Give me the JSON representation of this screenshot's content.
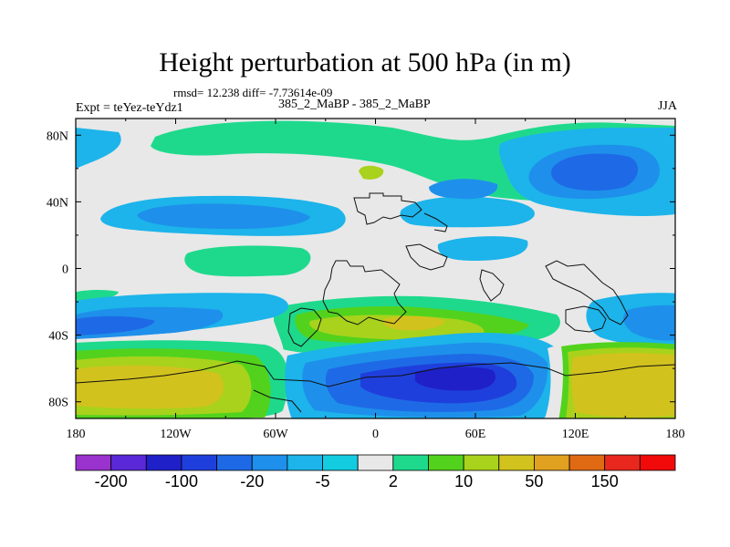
{
  "title": "Height perturbation at 500 hPa (in m)",
  "stats": "rmsd= 12.238  diff= -7.73614e-09",
  "left_label": "Expt = teYez-teYdz1",
  "center_label": "385_2_MaBP - 385_2_MaBP",
  "right_label": "JJA",
  "chart_data": {
    "type": "heatmap",
    "projection": "cylindrical-equidistant",
    "title": "Height perturbation at 500 hPa (in m)",
    "variable": "500 hPa geopotential height perturbation",
    "units": "m",
    "season": "JJA",
    "xlim": [
      -180,
      180
    ],
    "ylim": [
      -90,
      90
    ],
    "x_ticks": [
      -180,
      -120,
      -60,
      0,
      60,
      120,
      180
    ],
    "x_tick_labels": [
      "180",
      "120W",
      "60W",
      "0",
      "60E",
      "120E",
      "180"
    ],
    "y_ticks": [
      80,
      40,
      0,
      -40,
      -80
    ],
    "y_tick_labels": [
      "80N",
      "40N",
      "0",
      "40S",
      "80S"
    ],
    "colorbar": {
      "levels": [
        -200,
        -150,
        -100,
        -50,
        -20,
        -10,
        -5,
        -2,
        2,
        5,
        10,
        20,
        50,
        100,
        150,
        200
      ],
      "labeled_levels": [
        "-200",
        "-100",
        "-20",
        "-5",
        "2",
        "10",
        "50",
        "150"
      ],
      "labeled_index": [
        0,
        2,
        4,
        6,
        8,
        10,
        12,
        14
      ],
      "colors": [
        "#9a32cd",
        "#5a28d6",
        "#2020c8",
        "#1f3fdc",
        "#1e6ae6",
        "#1e90eb",
        "#1cb4ea",
        "#13cce0",
        "#e8e8e8",
        "#1ed98c",
        "#52d21c",
        "#a8d21c",
        "#d2c21e",
        "#e0a020",
        "#e06a14",
        "#e8281e",
        "#f00a0a"
      ]
    },
    "fields": [
      {
        "region": "NH high latitudes",
        "sign": "negative",
        "approx_level": -20
      },
      {
        "region": "NH mid-latitudes 40N",
        "sign": "negative",
        "approx_level": -20
      },
      {
        "region": "N Atlantic/Europe 60N",
        "sign": "positive",
        "approx_level": 10
      },
      {
        "region": "Southern Ocean 60S, Atlantic-Indian",
        "sign": "negative",
        "approx_level": -100
      },
      {
        "region": "S Pacific 60S",
        "sign": "positive",
        "approx_level": 50
      },
      {
        "region": "Australia-Pacific 60S",
        "sign": "positive",
        "approx_level": 50
      },
      {
        "region": "S Atlantic 30S",
        "sign": "positive",
        "approx_level": 20
      }
    ]
  }
}
